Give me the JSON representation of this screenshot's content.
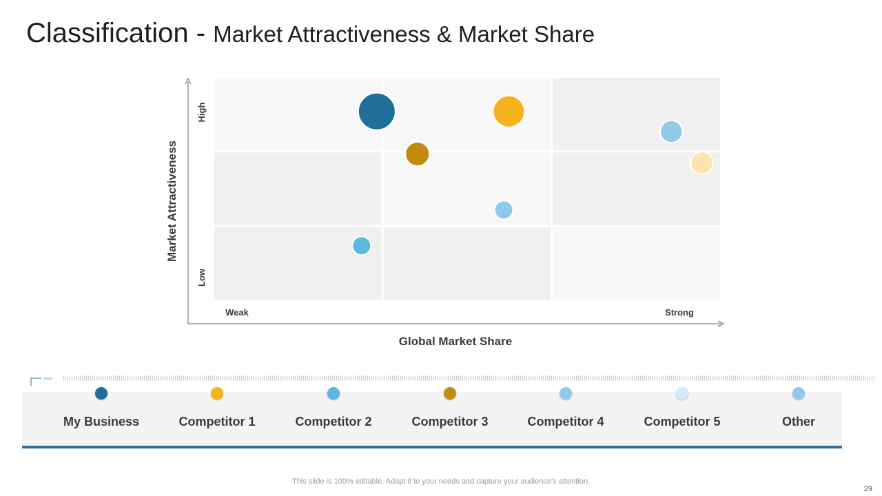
{
  "slide": {
    "title_main": "Classification - ",
    "title_sub": "Market Attractiveness & Market Share",
    "footer": "This slide is 100% editable. Adapt it to your needs and capture your audience's attention.",
    "page_number": "29"
  },
  "chart_data": {
    "type": "scatter",
    "xlabel": "Global Market Share",
    "ylabel": "Market Attractiveness",
    "x_tick_labels": [
      "Weak",
      "Strong"
    ],
    "y_tick_labels": [
      "Low",
      "High"
    ],
    "grid": "3x3",
    "legend_placement": "bottom",
    "series": [
      {
        "name": "My Business",
        "color": "#1f6f9a",
        "x": 0.32,
        "y": 0.85,
        "size": 1.0
      },
      {
        "name": "Competitor 1",
        "color": "#f5b21b",
        "x": 0.58,
        "y": 0.85,
        "size": 0.85
      },
      {
        "name": "Competitor 2",
        "color": "#5bb7e2",
        "x": 0.29,
        "y": 0.25,
        "size": 0.5
      },
      {
        "name": "Competitor 3",
        "color": "#c48a0e",
        "x": 0.4,
        "y": 0.66,
        "size": 0.65
      },
      {
        "name": "Competitor 4",
        "color": "#8fcbe9",
        "x": 0.57,
        "y": 0.41,
        "size": 0.5
      },
      {
        "name": "Competitor 5",
        "color": "#fde3ad",
        "x": 0.96,
        "y": 0.62,
        "size": 0.6
      },
      {
        "name": "Other",
        "color": "#8fcbe9",
        "x": 0.9,
        "y": 0.76,
        "size": 0.6
      }
    ]
  },
  "legend": [
    {
      "label": "My Business",
      "color": "#1f6f9a"
    },
    {
      "label": "Competitor 1",
      "color": "#f5b21b"
    },
    {
      "label": "Competitor 2",
      "color": "#5bb7e2"
    },
    {
      "label": "Competitor 3",
      "color": "#c48a0e"
    },
    {
      "label": "Competitor 4",
      "color": "#8fcbe9"
    },
    {
      "label": "Competitor 5",
      "color": "#d4ecf8"
    },
    {
      "label": "Other",
      "color": "#8fcbe9"
    }
  ]
}
